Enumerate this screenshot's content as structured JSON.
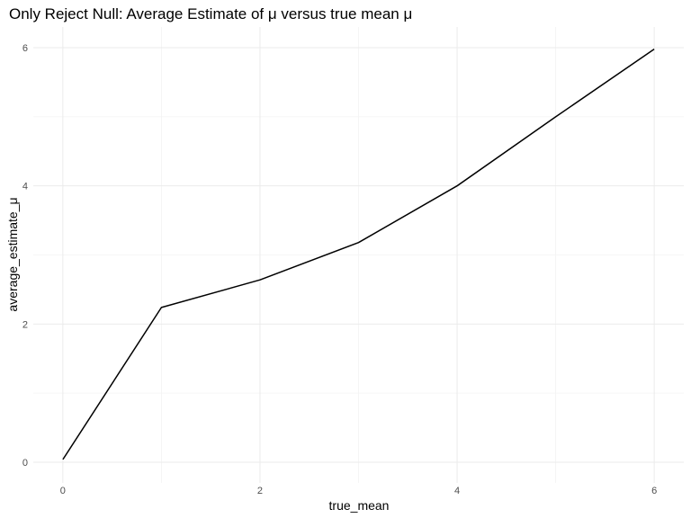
{
  "chart_data": {
    "type": "line",
    "title": "Only Reject Null: Average Estimate of μ versus true mean μ",
    "xlabel": "true_mean",
    "ylabel": "average_estimate_μ",
    "x": [
      0,
      1,
      2,
      3,
      4,
      5,
      6
    ],
    "series": [
      {
        "values": [
          0.04,
          2.24,
          2.64,
          3.18,
          4.0,
          5.0,
          5.98
        ]
      }
    ],
    "xlim": [
      -0.3,
      6.3
    ],
    "ylim": [
      -0.3,
      6.3
    ],
    "xticks": [
      0,
      2,
      4,
      6
    ],
    "yticks": [
      0,
      2,
      4,
      6
    ],
    "x_minor": [
      1,
      3,
      5
    ],
    "y_minor": [
      1,
      3,
      5
    ],
    "grid": true,
    "legend": "none",
    "line_color": "#000000",
    "grid_color": "#ebebeb"
  }
}
